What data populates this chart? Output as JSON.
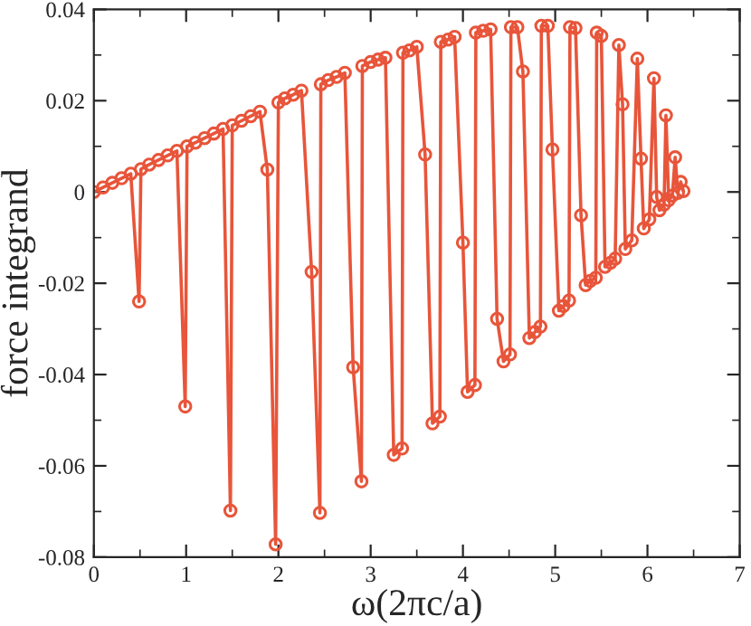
{
  "chart_data": {
    "type": "line",
    "xlabel": "ω(2πc/a)",
    "ylabel": "force integrand",
    "xlim": [
      0,
      7
    ],
    "ylim": [
      -0.08,
      0.04
    ],
    "xticks": [
      0,
      1,
      2,
      3,
      4,
      5,
      6,
      7
    ],
    "yticks": [
      {
        "value": -0.08,
        "label": "-0.08"
      },
      {
        "value": -0.06,
        "label": "-0.06"
      },
      {
        "value": -0.04,
        "label": "-0.04"
      },
      {
        "value": -0.02,
        "label": "-0.02"
      },
      {
        "value": 0,
        "label": "0"
      },
      {
        "value": 0.02,
        "label": "0.02"
      },
      {
        "value": 0.04,
        "label": "0.04"
      }
    ],
    "grid": false,
    "marker": "circle",
    "line_style": "solid",
    "x": [
      0.0,
      0.1,
      0.2,
      0.3,
      0.4,
      0.49,
      0.51,
      0.6,
      0.7,
      0.8,
      0.9,
      0.99,
      1.01,
      1.1,
      1.2,
      1.3,
      1.4,
      1.48,
      1.5,
      1.6,
      1.7,
      1.8,
      1.88,
      1.97,
      2.0,
      2.07,
      2.16,
      2.25,
      2.36,
      2.45,
      2.46,
      2.54,
      2.63,
      2.72,
      2.81,
      2.9,
      2.91,
      3.0,
      3.08,
      3.16,
      3.25,
      3.34,
      3.35,
      3.42,
      3.5,
      3.59,
      3.67,
      3.75,
      3.76,
      3.84,
      3.91,
      4.0,
      4.05,
      4.13,
      4.14,
      4.22,
      4.3,
      4.37,
      4.44,
      4.51,
      4.52,
      4.59,
      4.65,
      4.72,
      4.78,
      4.84,
      4.85,
      4.92,
      4.97,
      5.04,
      5.09,
      5.15,
      5.16,
      5.22,
      5.28,
      5.33,
      5.38,
      5.44,
      5.45,
      5.5,
      5.54,
      5.6,
      5.65,
      5.69,
      5.73,
      5.76,
      5.83,
      5.89,
      5.93,
      5.96,
      6.02,
      6.07,
      6.1,
      6.13,
      6.18,
      6.2,
      6.23,
      6.27,
      6.3,
      6.33,
      6.36,
      6.39
    ],
    "series": [
      {
        "color": "#e8553a",
        "values": [
          0.0,
          0.001,
          0.002,
          0.003,
          0.004,
          -0.024,
          0.005,
          0.006,
          0.007,
          0.008,
          0.009,
          -0.047,
          0.01,
          0.0108,
          0.0118,
          0.0128,
          0.0138,
          -0.0698,
          0.0146,
          0.0156,
          0.0166,
          0.0176,
          0.0049,
          -0.0772,
          0.0196,
          0.0205,
          0.0213,
          0.0222,
          -0.0175,
          -0.0703,
          0.0236,
          0.0245,
          0.0252,
          0.0261,
          -0.0384,
          -0.0634,
          0.0276,
          0.0285,
          0.029,
          0.0294,
          -0.0576,
          -0.0562,
          0.0305,
          0.031,
          0.0318,
          0.0082,
          -0.0507,
          -0.0492,
          0.0329,
          0.0334,
          0.034,
          -0.0111,
          -0.0438,
          -0.0423,
          0.0349,
          0.0353,
          0.0356,
          -0.0278,
          -0.0371,
          -0.0356,
          0.0361,
          0.0361,
          0.0264,
          -0.032,
          -0.0307,
          -0.0295,
          0.0364,
          0.0364,
          0.0093,
          -0.026,
          -0.025,
          -0.0238,
          0.0361,
          0.0359,
          -0.0051,
          -0.0204,
          -0.0195,
          -0.0188,
          0.0349,
          0.0342,
          -0.0164,
          -0.0155,
          -0.0146,
          0.0322,
          0.0192,
          -0.0125,
          -0.0106,
          0.0292,
          0.0073,
          -0.008,
          -0.006,
          0.0249,
          -0.0011,
          -0.004,
          -0.0028,
          0.0168,
          -0.0018,
          -0.0008,
          0.0076,
          -0.0002,
          0.0022,
          0.0002
        ]
      }
    ]
  }
}
